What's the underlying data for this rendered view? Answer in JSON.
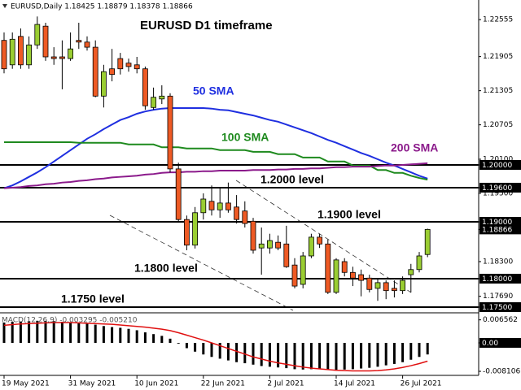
{
  "chart_data": [
    {
      "type": "candlestick",
      "header": "EURUSD,Daily  1.18425 1.18879 1.18378 1.18866",
      "title": "EURUSD D1 timeframe",
      "categories": [
        "19 May 2021",
        null,
        null,
        null,
        null,
        null,
        null,
        null,
        "31 May 2021",
        null,
        null,
        null,
        null,
        null,
        null,
        null,
        "10 Jun 2021",
        null,
        null,
        null,
        null,
        null,
        null,
        null,
        "22 Jun 2021",
        null,
        null,
        null,
        null,
        null,
        null,
        null,
        "2 Jul 2021",
        null,
        null,
        null,
        null,
        null,
        null,
        null,
        "14 Jul 2021",
        null,
        null,
        null,
        null,
        null,
        null,
        null,
        "26 Jul 2021",
        null,
        null,
        null
      ],
      "open": [
        1.2219,
        1.2176,
        1.2226,
        1.2176,
        1.2211,
        1.2244,
        1.219,
        1.219,
        1.2187,
        1.2219,
        1.2216,
        1.2207,
        1.2121,
        1.2169,
        1.2187,
        1.2179,
        1.2176,
        1.2169,
        1.2101,
        1.2116,
        1.2121,
        1.1993,
        1.1904,
        1.1859,
        1.1916,
        1.1936,
        1.1921,
        1.1933,
        1.1926,
        1.1919,
        1.1901,
        1.1854,
        1.1854,
        1.1864,
        1.1861,
        1.1824,
        1.179,
        1.184,
        1.1873,
        1.1861,
        1.1776,
        1.183,
        1.1811,
        1.1807,
        1.1801,
        1.1783,
        1.1793,
        1.1783,
        1.1779,
        1.1807,
        1.1816,
        1.18425
      ],
      "high": [
        1.2233,
        1.2233,
        1.224,
        1.2226,
        1.2261,
        1.225,
        1.2207,
        1.2219,
        1.2233,
        1.225,
        1.2226,
        1.2219,
        1.2176,
        1.2204,
        1.2197,
        1.2187,
        1.219,
        1.2173,
        1.2136,
        1.214,
        1.2126,
        1.2004,
        1.1911,
        1.1926,
        1.195,
        1.1964,
        1.1959,
        1.1969,
        1.1947,
        1.1936,
        1.1907,
        1.189,
        1.1879,
        1.1876,
        1.1893,
        1.1836,
        1.1847,
        1.1879,
        1.1879,
        1.1869,
        1.1836,
        1.1836,
        1.1821,
        1.1816,
        1.1807,
        1.1801,
        1.1797,
        1.1797,
        1.1804,
        1.1826,
        1.1847,
        1.18879
      ],
      "low": [
        1.2161,
        1.2169,
        1.2169,
        1.2169,
        1.2204,
        1.2183,
        1.2176,
        1.2133,
        1.2183,
        1.2204,
        1.2201,
        1.2119,
        1.2101,
        1.2147,
        1.2159,
        1.2164,
        1.2161,
        1.2097,
        1.2097,
        1.2107,
        1.1987,
        1.1901,
        1.185,
        1.1853,
        1.1904,
        1.1911,
        1.1907,
        1.1916,
        1.1897,
        1.189,
        1.1844,
        1.1807,
        1.1844,
        1.185,
        1.1819,
        1.1783,
        1.1783,
        1.1836,
        1.1854,
        1.1773,
        1.1773,
        1.1804,
        1.1787,
        1.1769,
        1.1776,
        1.1761,
        1.1764,
        1.1767,
        1.1773,
        1.1776,
        1.1811,
        1.18378
      ],
      "close": [
        1.2169,
        1.2221,
        1.2176,
        1.2211,
        1.2247,
        1.219,
        1.2187,
        1.2187,
        1.2204,
        1.2216,
        1.2207,
        1.2121,
        1.2164,
        1.2159,
        1.2169,
        1.2173,
        1.2169,
        1.2104,
        1.2119,
        1.2121,
        1.1993,
        1.1904,
        1.1859,
        1.1916,
        1.194,
        1.1921,
        1.1933,
        1.1921,
        1.1904,
        1.1897,
        1.185,
        1.1861,
        1.1867,
        1.1854,
        1.1821,
        1.1787,
        1.184,
        1.1873,
        1.1861,
        1.1776,
        1.1833,
        1.1811,
        1.1801,
        1.1797,
        1.1781,
        1.1793,
        1.1779,
        1.1779,
        1.1797,
        1.1816,
        1.184,
        1.18866
      ],
      "up_color": "#9acd32",
      "down_color": "#ee5a24",
      "series": [
        {
          "name": "50 SMA",
          "color": "#1f2fe0",
          "values": [
            1.1959,
            1.1964,
            1.1971,
            1.1979,
            1.1987,
            1.1996,
            1.2006,
            1.2016,
            1.2026,
            1.2036,
            1.2046,
            1.2054,
            1.2063,
            1.2071,
            1.2079,
            1.2084,
            1.209,
            1.2094,
            1.2097,
            1.2099,
            1.21,
            1.21,
            1.21,
            1.21,
            1.21,
            1.2099,
            1.2097,
            1.2096,
            1.2093,
            1.209,
            1.2087,
            1.2083,
            1.2079,
            1.2076,
            1.2071,
            1.2066,
            1.2061,
            1.2056,
            1.205,
            1.2044,
            1.2039,
            1.2033,
            1.2027,
            1.2021,
            1.2016,
            1.201,
            1.2004,
            1.1999,
            1.1993,
            1.1987,
            1.1981,
            1.1976
          ]
        },
        {
          "name": "100 SMA",
          "color": "#1e8a1e",
          "values": [
            1.204,
            1.204,
            1.204,
            1.204,
            1.204,
            1.204,
            1.204,
            1.204,
            1.204,
            1.2039,
            1.2039,
            1.2039,
            1.2039,
            1.2039,
            1.2039,
            1.2036,
            1.2036,
            1.2036,
            1.2036,
            1.2031,
            1.2031,
            1.2031,
            1.2029,
            1.2029,
            1.2029,
            1.2029,
            1.2026,
            1.2026,
            1.2026,
            1.2026,
            1.2023,
            1.2023,
            1.2023,
            1.2019,
            1.2019,
            1.2019,
            1.2013,
            1.2013,
            1.2013,
            1.2006,
            1.2006,
            1.2006,
            1.1999,
            1.1999,
            1.1999,
            1.1991,
            1.1991,
            1.1986,
            1.1986,
            1.1981,
            1.1977,
            1.1974
          ]
        },
        {
          "name": "200 SMA",
          "color": "#8b1a8b",
          "values": [
            1.1959,
            1.196,
            1.1961,
            1.1963,
            1.1964,
            1.1966,
            1.1967,
            1.1969,
            1.197,
            1.1972,
            1.1973,
            1.1975,
            1.1976,
            1.1978,
            1.1979,
            1.198,
            1.1981,
            1.1983,
            1.1984,
            1.1986,
            1.1987,
            1.1987,
            1.1988,
            1.1988,
            1.1989,
            1.1989,
            1.199,
            1.199,
            1.199,
            1.199,
            1.1991,
            1.1991,
            1.1991,
            1.1992,
            1.1992,
            1.1993,
            1.1993,
            1.1994,
            1.1994,
            1.1995,
            1.1996,
            1.1996,
            1.1997,
            1.1997,
            1.1997,
            1.1998,
            1.1999,
            1.1999,
            1.2,
            1.2001,
            1.2002,
            1.2003
          ]
        }
      ],
      "levels": [
        {
          "value": 1.2,
          "label": "1.20000",
          "annotation": "1.2000 level"
        },
        {
          "value": 1.196,
          "label": "1.19600"
        },
        {
          "value": 1.19,
          "label": "1.19000",
          "annotation": "1.1900 level"
        },
        {
          "value": 1.18,
          "label": "1.18000",
          "annotation": "1.1800 level"
        },
        {
          "value": 1.175,
          "label": "1.17500",
          "annotation": "1.1750 level"
        }
      ],
      "current_price": {
        "value": 1.18866,
        "label": "1.18866"
      },
      "ylim": [
        1.17414,
        1.229
      ],
      "yticks": [
        1.22555,
        1.21905,
        1.21305,
        1.20705,
        {
          "value": 1.201,
          "label": "1.20100"
        },
        {
          "value": 1.195,
          "label": "1.19500"
        },
        {
          "value": 1.183,
          "label": "1.18300"
        },
        {
          "value": 1.1769,
          "label": "1.17690"
        }
      ]
    },
    {
      "type": "macd",
      "title": "MACD(12,26,9) -0.003295 -0.005210",
      "histogram": {
        "color": "#000000",
        "values": [
          0.0058,
          0.006,
          0.0061,
          0.0062,
          0.0063,
          0.0063,
          0.0062,
          0.006,
          0.0058,
          0.0057,
          0.0055,
          0.0052,
          0.0048,
          0.0045,
          0.0043,
          0.004,
          0.0036,
          0.003,
          0.0025,
          0.002,
          0.0012,
          -0.0002,
          -0.0015,
          -0.0025,
          -0.0033,
          -0.004,
          -0.0045,
          -0.005,
          -0.0055,
          -0.0058,
          -0.0062,
          -0.0066,
          -0.0068,
          -0.007,
          -0.0072,
          -0.0075,
          -0.0076,
          -0.0075,
          -0.0074,
          -0.0076,
          -0.0077,
          -0.0076,
          -0.0075,
          -0.0073,
          -0.0071,
          -0.0068,
          -0.0064,
          -0.006,
          -0.0055,
          -0.0048,
          -0.004,
          -0.003295
        ]
      },
      "signal": {
        "color": "#e01010",
        "values": [
          0.005,
          0.0052,
          0.0054,
          0.0055,
          0.0056,
          0.0057,
          0.0058,
          0.0058,
          0.0058,
          0.0057,
          0.0056,
          0.0055,
          0.0054,
          0.0053,
          0.0051,
          0.0049,
          0.0047,
          0.0045,
          0.0042,
          0.0039,
          0.0035,
          0.0029,
          0.0022,
          0.0015,
          0.0008,
          0.0,
          -0.0008,
          -0.0016,
          -0.0024,
          -0.0032,
          -0.004,
          -0.0046,
          -0.0052,
          -0.0057,
          -0.0061,
          -0.0065,
          -0.0069,
          -0.0072,
          -0.0074,
          -0.0076,
          -0.0078,
          -0.0079,
          -0.008,
          -0.008,
          -0.008,
          -0.0079,
          -0.0077,
          -0.0074,
          -0.007,
          -0.0065,
          -0.0059,
          -0.00521
        ]
      },
      "ylim": [
        -0.00926,
        0.00857
      ],
      "yticks": [
        0.006562,
        {
          "value": 0,
          "label": "0.00",
          "boxed": true
        },
        -0.008106
      ]
    }
  ]
}
